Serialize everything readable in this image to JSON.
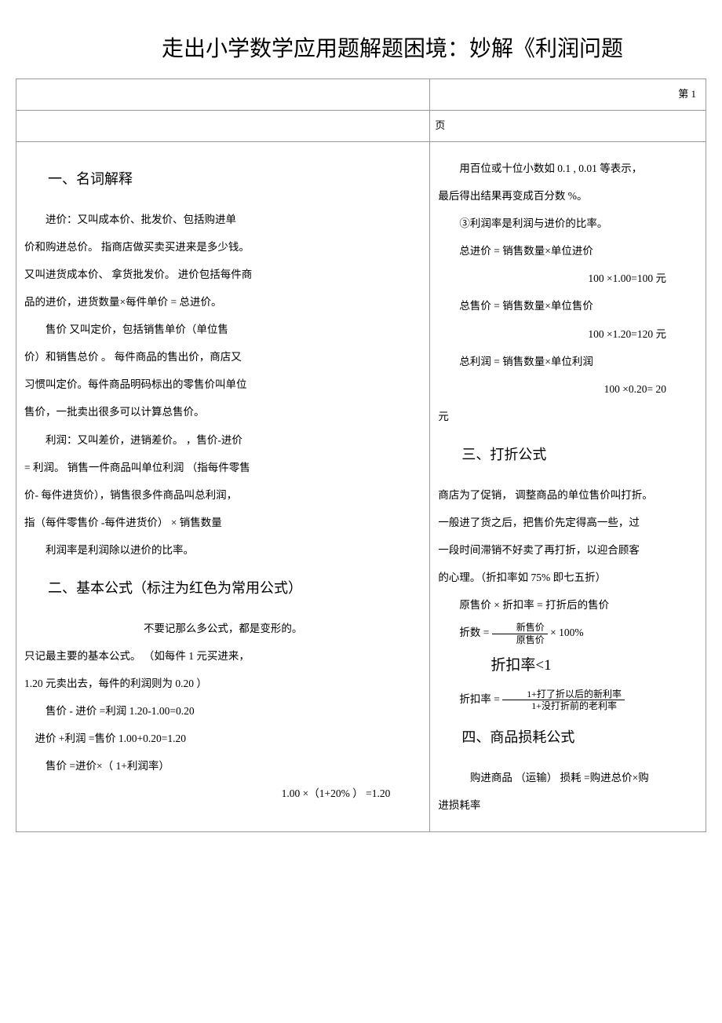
{
  "title": "走出小学数学应用题解题困境：妙解《利润问题",
  "page_num": "第 1",
  "page_char": "页",
  "left": {
    "s1_head": "一、名词解释",
    "s1_p1": "进价：又叫成本价、批发价、包括购进单",
    "s1_p2": "价和购进总价。   指商店做买卖买进来是多少钱。",
    "s1_p3": "又叫进货成本价、   拿货批发价。  进价包括每件商",
    "s1_p4": "品的进价，进货数量×每件单价    = 总进价。",
    "s1_p5": "售价    又叫定价，包括销售单价（单位售",
    "s1_p6": "价）和销售总价  。 每件商品的售出价，商店又",
    "s1_p7": "习惯叫定价。每件商品明码标出的零售价叫单位",
    "s1_p8": "售价，一批卖出很多可以计算总售价。",
    "s1_p9": "利润：又叫差价，进销差价。    ，售价-进价",
    "s1_p10": "= 利润。 销售一件商品叫单位利润    （指每件零售",
    "s1_p11": "价- 每件进货价），销售很多件商品叫总利润，",
    "s1_p12": "指（每件零售价  -每件进货价） × 销售数量",
    "s1_p13": "利润率是利润除以进价的比率。",
    "s2_head": "二、基本公式（标注为红色为常用公式）",
    "s2_p1": "不要记那么多公式，都是变形的。",
    "s2_p2": "只记最主要的基本公式。   （如每件  1 元买进来，",
    "s2_p3": "1.20  元卖出去，每件的利润则为     0.20 ）",
    "s2_p4": "售价 - 进价 =利润    1.20-1.00=0.20",
    "s2_p5": "进价 +利润 =售价       1.00+0.20=1.20",
    "s2_p6": "售价 =进价×（ 1+利润率）",
    "s2_p7": "1.00 ×（1+20%   ） =1.20"
  },
  "right": {
    "r_p1": "用百位或十位小数如    0.1 , 0.01  等表示，",
    "r_p2": "最后得出结果再变成百分数    %。",
    "r_p3": "③利润率是利润与进价的比率。",
    "r_p4": "总进价 = 销售数量×单位进价",
    "r_p4b": "100 ×1.00=100     元",
    "r_p5": "总售价 = 销售数量×单位售价",
    "r_p5b": "100 ×1.20=120     元",
    "r_p6": "总利润 = 销售数量×单位利润",
    "r_p6b": "100 ×0.20=       20",
    "r_p6c": "元",
    "s3_head": "三、打折公式",
    "s3_p1": "商店为了促销，  调整商品的单位售价叫打折。",
    "s3_p2": "一般进了货之后，把售价先定得高一些，过",
    "s3_p3": "一段时间滞销不好卖了再打折，以迎合顾客",
    "s3_p4": "的心理。（折扣率如    75%  即七五折）",
    "s3_p5": "原售价 × 折扣率 = 打折后的售价",
    "frac1_label": "折数 =",
    "frac1_num": "新售价",
    "frac1_den": "原售价",
    "frac1_suffix": " × 100%",
    "frac1_big": "折扣率<1",
    "frac2_label": "折扣率 =",
    "frac2_num": "1+打了折以后的新利率",
    "frac2_den": "1+没打折前的老利率",
    "s4_head": "四、商品损耗公式",
    "s4_p1": "购进商品 （运输） 损耗 =购进总价×购",
    "s4_p2": "进损耗率"
  }
}
